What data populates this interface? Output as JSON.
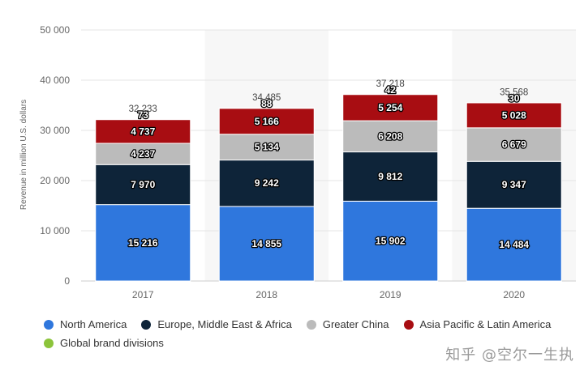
{
  "chart_data": {
    "type": "bar",
    "stacked": true,
    "categories": [
      "2017",
      "2018",
      "2019",
      "2020"
    ],
    "series": [
      {
        "name": "North America",
        "color": "#2f77dd",
        "values": [
          15216,
          14855,
          15902,
          14484
        ],
        "labels": [
          "15 216",
          "14 855",
          "15 902",
          "14 484"
        ]
      },
      {
        "name": "Europe, Middle East & Africa",
        "color": "#0e2439",
        "values": [
          7970,
          9242,
          9812,
          9347
        ],
        "labels": [
          "7 970",
          "9 242",
          "9 812",
          "9 347"
        ]
      },
      {
        "name": "Greater China",
        "color": "#bbbbbb",
        "values": [
          4237,
          5134,
          6208,
          6679
        ],
        "labels": [
          "4 237",
          "5 134",
          "6 208",
          "6 679"
        ]
      },
      {
        "name": "Asia Pacific & Latin America",
        "color": "#a80d12",
        "values": [
          4737,
          5166,
          5254,
          5028
        ],
        "labels": [
          "4 737",
          "5 166",
          "5 254",
          "5 028"
        ]
      },
      {
        "name": "Global brand divisions",
        "color": "#8cc43b",
        "values": [
          73,
          88,
          42,
          30
        ],
        "labels": [
          "73",
          "88",
          "42",
          "30"
        ]
      }
    ],
    "totals": [
      "32 233",
      "34 485",
      "37 218",
      "35 568"
    ],
    "ylabel": "Revenue in million U.S. dollars",
    "ylim": [
      0,
      50000
    ],
    "yticks": [
      0,
      10000,
      20000,
      30000,
      40000,
      50000
    ],
    "ytick_labels": [
      "0",
      "10 000",
      "20 000",
      "30 000",
      "40 000",
      "50 000"
    ],
    "grid": true,
    "legend_position": "bottom"
  },
  "watermark": "知乎 @空尔一生执"
}
